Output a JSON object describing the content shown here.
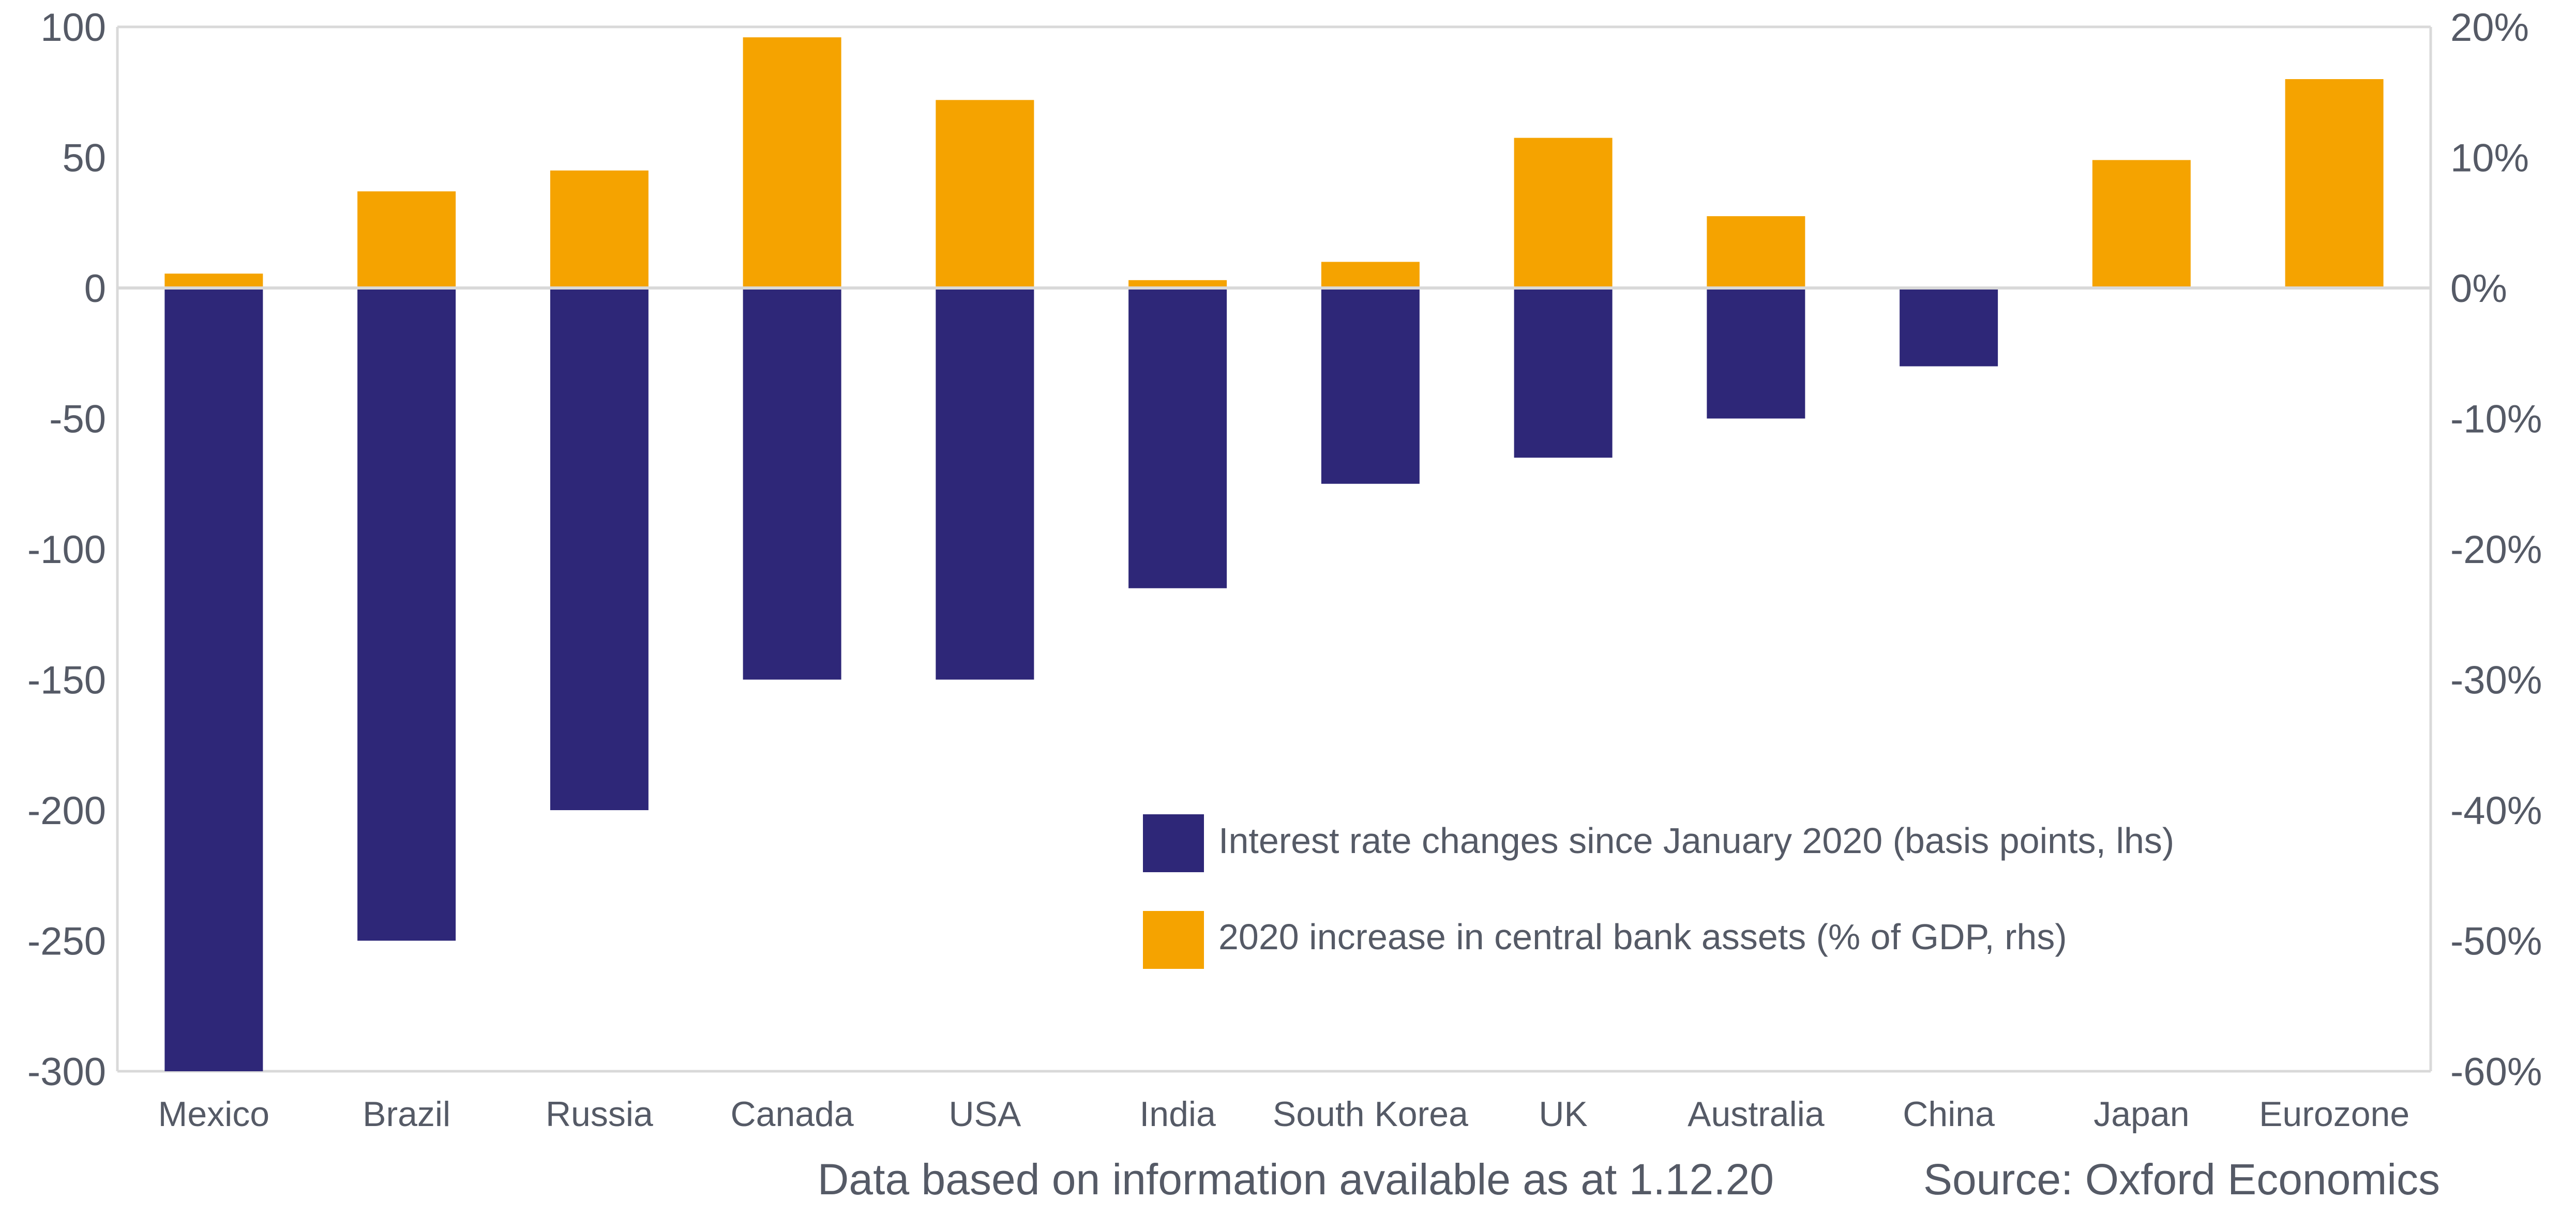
{
  "chart_data": {
    "type": "bar",
    "categories": [
      "Mexico",
      "Brazil",
      "Russia",
      "Canada",
      "USA",
      "India",
      "South Korea",
      "UK",
      "Australia",
      "China",
      "Japan",
      "Eurozone"
    ],
    "series": [
      {
        "name": "Interest rate changes since January 2020 (basis points, lhs)",
        "axis": "left",
        "color": "#2e2778",
        "values": [
          -300,
          -250,
          -200,
          -150,
          -150,
          -115,
          -75,
          -65,
          -50,
          -30,
          0,
          0
        ]
      },
      {
        "name": "2020 increase in central bank assets (% of GDP, rhs)",
        "axis": "right",
        "color": "#f5a300",
        "values": [
          1.1,
          7.4,
          9.0,
          19.2,
          14.4,
          0.6,
          2.0,
          11.5,
          5.5,
          0.0,
          9.8,
          16.0
        ]
      }
    ],
    "y_left": {
      "min": -300,
      "max": 100,
      "ticks": [
        100,
        50,
        0,
        -50,
        -100,
        -150,
        -200,
        -250,
        -300
      ]
    },
    "y_right": {
      "min": -60,
      "max": 20,
      "ticks": [
        20,
        10,
        0,
        -10,
        -20,
        -30,
        -40,
        -50,
        -60
      ],
      "tick_labels": [
        "20%",
        "10%",
        "0%",
        "-10%",
        "-20%",
        "-30%",
        "-40%",
        "-50%",
        "-60%"
      ]
    },
    "legend_position": "lower-right",
    "grid": false
  },
  "footer": {
    "note": "Data based on information available as at 1.12.20",
    "source": "Source: Oxford Economics"
  },
  "colors": {
    "axis_line": "#d9d9d9",
    "text": "#555a66"
  }
}
